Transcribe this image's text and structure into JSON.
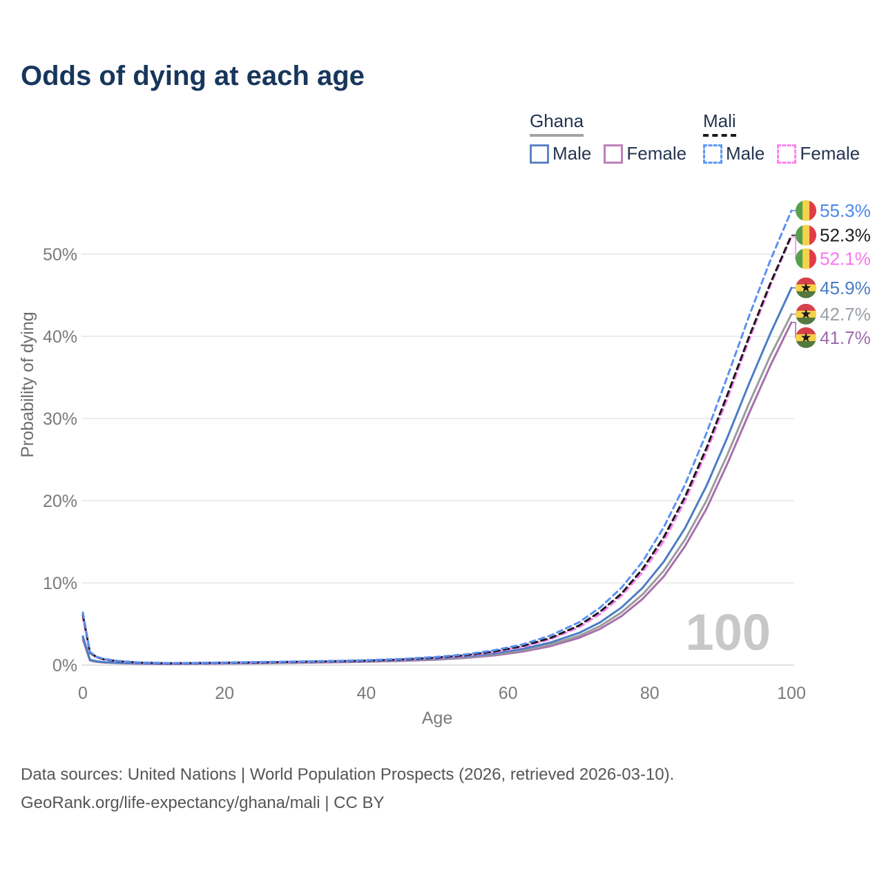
{
  "title": "Odds of dying at each age",
  "legend": {
    "groups": [
      {
        "id": "ghana",
        "label": "Ghana",
        "line_style": "solid",
        "underline_color": "#a3a3a3",
        "items": [
          {
            "label": "Male",
            "color": "#5b84c4",
            "dashed": false
          },
          {
            "label": "Female",
            "color": "#bd7fba",
            "dashed": false
          }
        ]
      },
      {
        "id": "mali",
        "label": "Mali",
        "line_style": "dashed",
        "underline_color": "#1a1a1a",
        "items": [
          {
            "label": "Male",
            "color": "#5e97f6",
            "dashed": true
          },
          {
            "label": "Female",
            "color": "#fc83f0",
            "dashed": true
          }
        ]
      }
    ]
  },
  "chart_data": {
    "type": "line",
    "title": "Odds of dying at each age",
    "xlabel": "Age",
    "ylabel": "Probability of dying",
    "x_ticks": [
      0,
      20,
      40,
      60,
      80,
      100
    ],
    "y_tick_labels": [
      "0%",
      "10%",
      "20%",
      "30%",
      "40%",
      "50%"
    ],
    "y_tick_values": [
      0,
      10,
      20,
      30,
      40,
      50
    ],
    "xlim": [
      0,
      100
    ],
    "ylim": [
      0,
      57
    ],
    "grid": "horizontal",
    "legend_position": "top-right",
    "hover_age_label": "100",
    "ages": [
      0,
      1,
      2,
      3,
      5,
      8,
      12,
      16,
      20,
      25,
      30,
      35,
      40,
      45,
      50,
      54,
      58,
      62,
      66,
      70,
      73,
      76,
      79,
      82,
      85,
      88,
      91,
      94,
      97,
      100
    ],
    "series": [
      {
        "name": "Mali male",
        "country": "mali",
        "sex": "male",
        "color": "#5b8ff2",
        "dashed": true,
        "end_label": "55.3%",
        "label_color": "#4c87f0",
        "flag_icon": "mali-flag-icon",
        "values": [
          6.4,
          1.6,
          1.0,
          0.75,
          0.5,
          0.32,
          0.25,
          0.27,
          0.32,
          0.38,
          0.44,
          0.5,
          0.6,
          0.75,
          1.0,
          1.3,
          1.8,
          2.5,
          3.6,
          5.2,
          7.0,
          9.4,
          12.6,
          16.8,
          22.0,
          28.2,
          35.2,
          42.4,
          49.2,
          55.3
        ]
      },
      {
        "name": "Mali both sexes",
        "country": "mali",
        "sex": "both",
        "color": "#1a1a1a",
        "dashed": true,
        "end_label": "52.3%",
        "label_color": "#1c1c1c",
        "flag_icon": "mali-flag-icon",
        "values": [
          6.1,
          1.5,
          0.95,
          0.7,
          0.46,
          0.3,
          0.23,
          0.25,
          0.29,
          0.34,
          0.4,
          0.46,
          0.55,
          0.69,
          0.92,
          1.2,
          1.65,
          2.3,
          3.3,
          4.8,
          6.5,
          8.7,
          11.7,
          15.6,
          20.5,
          26.4,
          33.0,
          39.9,
          46.4,
          52.3
        ]
      },
      {
        "name": "Mali female",
        "country": "mali",
        "sex": "female",
        "color": "#fb80f1",
        "dashed": true,
        "end_label": "52.1%",
        "label_color": "#fb74ef",
        "flag_icon": "mali-flag-icon",
        "values": [
          5.8,
          1.45,
          0.9,
          0.67,
          0.44,
          0.28,
          0.21,
          0.23,
          0.26,
          0.31,
          0.37,
          0.43,
          0.52,
          0.65,
          0.87,
          1.13,
          1.56,
          2.18,
          3.15,
          4.6,
          6.2,
          8.4,
          11.3,
          15.1,
          20.0,
          25.9,
          32.5,
          39.5,
          46.1,
          52.1
        ]
      },
      {
        "name": "Ghana male",
        "country": "ghana",
        "sex": "male",
        "color": "#4a7dc4",
        "dashed": false,
        "end_label": "45.9%",
        "label_color": "#4a7dc4",
        "flag_icon": "ghana-flag-icon",
        "values": [
          3.5,
          0.65,
          0.45,
          0.35,
          0.27,
          0.2,
          0.17,
          0.19,
          0.23,
          0.28,
          0.34,
          0.4,
          0.48,
          0.6,
          0.8,
          1.05,
          1.4,
          1.95,
          2.75,
          3.9,
          5.2,
          7.0,
          9.4,
          12.6,
          16.7,
          21.8,
          27.8,
          34.2,
          40.3,
          45.9
        ]
      },
      {
        "name": "Ghana both sexes",
        "country": "ghana",
        "sex": "both",
        "color": "#9b9b9b",
        "dashed": false,
        "end_label": "42.7%",
        "label_color": "#9aa0a6",
        "flag_icon": "ghana-flag-icon",
        "values": [
          3.3,
          0.6,
          0.42,
          0.33,
          0.25,
          0.18,
          0.15,
          0.17,
          0.21,
          0.26,
          0.31,
          0.37,
          0.44,
          0.55,
          0.73,
          0.95,
          1.28,
          1.78,
          2.5,
          3.55,
          4.75,
          6.4,
          8.6,
          11.5,
          15.3,
          20.0,
          25.7,
          31.8,
          37.6,
          42.7
        ]
      },
      {
        "name": "Ghana female",
        "country": "ghana",
        "sex": "female",
        "color": "#a76fad",
        "dashed": false,
        "end_label": "41.7%",
        "label_color": "#9d6bab",
        "flag_icon": "ghana-flag-icon",
        "values": [
          3.1,
          0.55,
          0.38,
          0.3,
          0.23,
          0.16,
          0.13,
          0.15,
          0.18,
          0.22,
          0.27,
          0.33,
          0.4,
          0.5,
          0.66,
          0.87,
          1.17,
          1.63,
          2.3,
          3.3,
          4.4,
          5.95,
          8.05,
          10.8,
          14.5,
          19.0,
          24.6,
          30.6,
          36.4,
          41.7
        ]
      }
    ],
    "flags": {
      "mali": {
        "stripes": [
          "#55a04c",
          "#f5d24b",
          "#e23c46"
        ],
        "orientation": "vertical"
      },
      "ghana": {
        "stripes": [
          "#d6414b",
          "#f5d24b",
          "#53793f"
        ],
        "orientation": "horizontal",
        "star": "#1a1a1a"
      }
    },
    "colors": {
      "gridline": "#ececec",
      "axis_line": "#e0e0e0",
      "tick_text": "#7a7a7a",
      "axis_title": "#6e6e6e",
      "watermark": "#c8c8c8",
      "title_text": "#17365c"
    }
  },
  "footer": {
    "line1": "Data sources: United Nations | World Population Prospects (2026, retrieved 2026-03-10).",
    "line2": "GeoRank.org/life-expectancy/ghana/mali | CC BY"
  }
}
